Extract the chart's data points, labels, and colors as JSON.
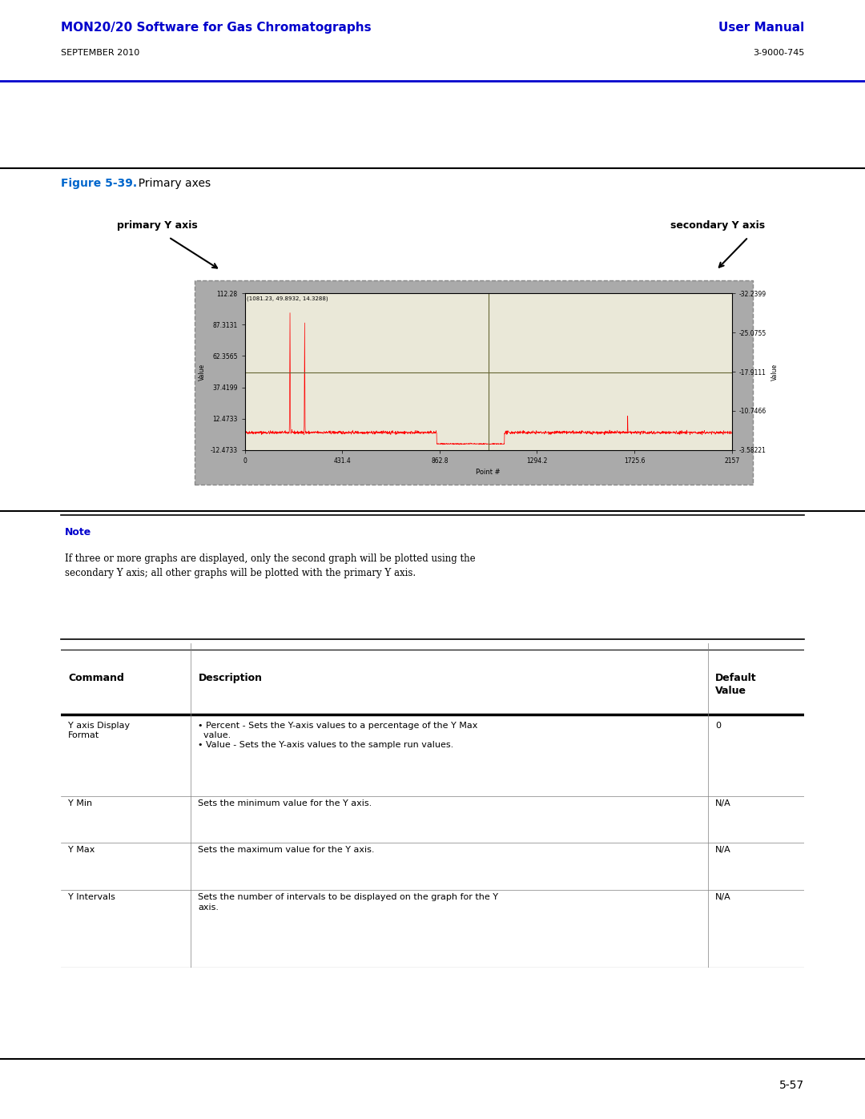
{
  "page_title_left": "MON20/20 Software for Gas Chromatographs",
  "page_title_right": "User Manual",
  "page_subtitle_left": "SEPTEMBER 2010",
  "page_subtitle_right": "3-9000-745",
  "figure_label": "Figure 5-39.",
  "figure_title": "  Primary axes",
  "primary_y_axis_label": "primary Y axis",
  "secondary_y_axis_label": "secondary Y axis",
  "graph_annotation": "(1081.23, 49.8932, 14.3288)",
  "left_yticks": [
    112.28,
    87.3131,
    62.3565,
    37.4199,
    12.4733,
    -12.4733
  ],
  "left_yticklabels": [
    "112.28",
    "87.3131",
    "62.3565",
    "37.4199",
    "12.4733",
    "-12.4733"
  ],
  "right_yticks": [
    -32.2399,
    -25.0755,
    -17.9111,
    -10.7466,
    -3.58221
  ],
  "right_yticklabels": [
    "-32.2399",
    "-25.0755",
    "-17.9111",
    "-10.7466",
    "-3.58221"
  ],
  "xticks": [
    0,
    431.4,
    862.8,
    1294.2,
    1725.6,
    2157
  ],
  "xticklabels": [
    "0",
    "431.4",
    "862.8",
    "1294.2",
    "1725.6",
    "2157"
  ],
  "xlabel": "Point #",
  "left_ylabel": "Value",
  "right_ylabel": "Value",
  "note_title": "Note",
  "note_text": "If three or more graphs are displayed, only the second graph will be plotted using the\nsecondary Y axis; all other graphs will be plotted with the primary Y axis.",
  "page_number": "5-57",
  "header_blue": "#0000CC",
  "figure_label_blue": "#0066CC",
  "note_blue": "#0000CC",
  "graph_bg": "#EAE8D8",
  "graph_outer_bg": "#AAAAAA",
  "graph_border": "#888888",
  "red_line_color": "#FF0000",
  "blue_line_color": "#6666CC",
  "crosshair_color": "#666633",
  "table_rows": [
    [
      "Y axis Display\nFormat",
      "• Percent - Sets the Y-axis values to a percentage of the Y Max\n  value.\n• Value - Sets the Y-axis values to the sample run values.",
      "0"
    ],
    [
      "Y Min",
      "Sets the minimum value for the Y axis.",
      "N/A"
    ],
    [
      "Y Max",
      "Sets the maximum value for the Y axis.",
      "N/A"
    ],
    [
      "Y Intervals",
      "Sets the number of intervals to be displayed on the graph for the Y\naxis.",
      "N/A"
    ]
  ],
  "row_tops": [
    0.77,
    0.53,
    0.385,
    0.24
  ],
  "row_bottoms": [
    0.53,
    0.385,
    0.24,
    0.0
  ]
}
